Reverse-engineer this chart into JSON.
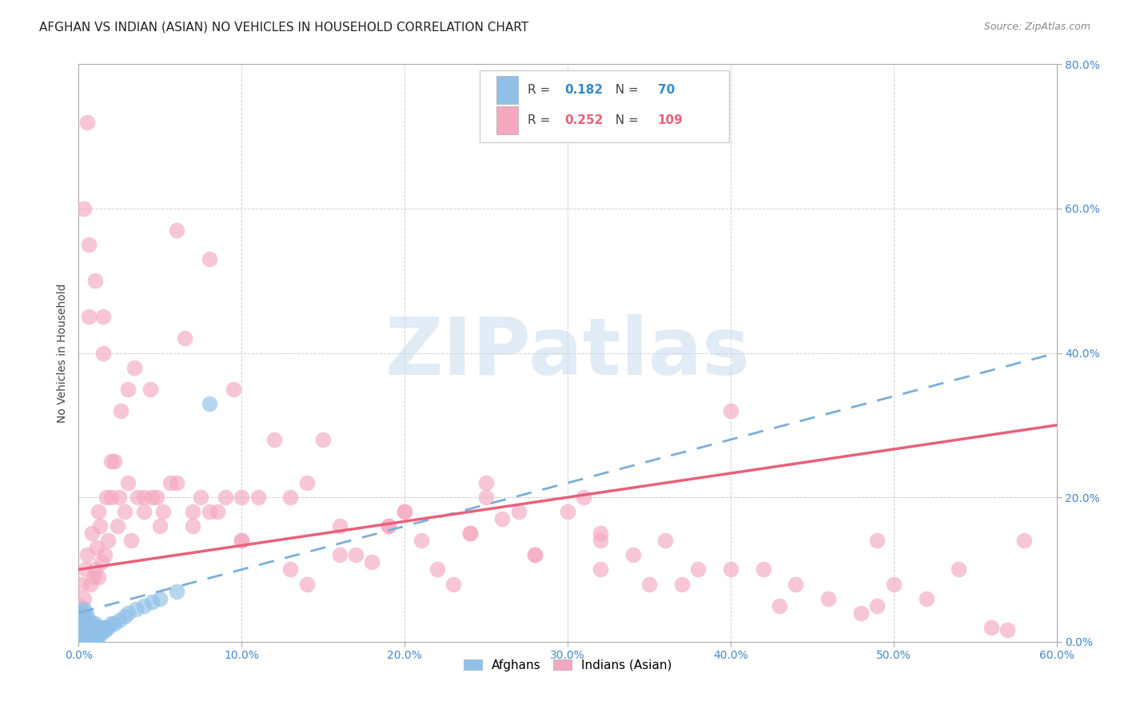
{
  "title": "AFGHAN VS INDIAN (ASIAN) NO VEHICLES IN HOUSEHOLD CORRELATION CHART",
  "source": "Source: ZipAtlas.com",
  "ylabel": "No Vehicles in Household",
  "x_tick_labels": [
    "0.0%",
    "10.0%",
    "20.0%",
    "30.0%",
    "40.0%",
    "50.0%",
    "60.0%"
  ],
  "y_tick_labels": [
    "0.0%",
    "20.0%",
    "40.0%",
    "60.0%",
    "80.0%"
  ],
  "xlim": [
    0.0,
    0.6
  ],
  "ylim": [
    0.0,
    0.8
  ],
  "x_ticks": [
    0.0,
    0.1,
    0.2,
    0.3,
    0.4,
    0.5,
    0.6
  ],
  "y_ticks": [
    0.0,
    0.2,
    0.4,
    0.6,
    0.8
  ],
  "afghan_R": 0.182,
  "afghan_N": 70,
  "indian_R": 0.252,
  "indian_N": 109,
  "afghan_color": "#90C0E8",
  "indian_color": "#F4A8C0",
  "afghan_line_color": "#7AAED8",
  "indian_line_color": "#E8607A",
  "background_color": "#FFFFFF",
  "grid_color": "#CCCCCC",
  "title_fontsize": 11,
  "axis_label_fontsize": 10,
  "tick_fontsize": 10,
  "tick_color": "#4488CC",
  "watermark_color": "#C5D8EC",
  "watermark_fontsize": 72,
  "afghan_line_start_y": 0.04,
  "afghan_line_end_y": 0.4,
  "indian_line_start_y": 0.1,
  "indian_line_end_y": 0.3,
  "afghan_x": [
    0.001,
    0.001,
    0.001,
    0.001,
    0.001,
    0.001,
    0.001,
    0.001,
    0.002,
    0.002,
    0.002,
    0.002,
    0.002,
    0.002,
    0.002,
    0.003,
    0.003,
    0.003,
    0.003,
    0.003,
    0.003,
    0.003,
    0.004,
    0.004,
    0.004,
    0.004,
    0.004,
    0.004,
    0.005,
    0.005,
    0.005,
    0.005,
    0.005,
    0.006,
    0.006,
    0.006,
    0.006,
    0.007,
    0.007,
    0.007,
    0.008,
    0.008,
    0.008,
    0.009,
    0.009,
    0.01,
    0.01,
    0.01,
    0.011,
    0.011,
    0.012,
    0.012,
    0.013,
    0.013,
    0.014,
    0.015,
    0.016,
    0.017,
    0.018,
    0.02,
    0.022,
    0.025,
    0.028,
    0.03,
    0.035,
    0.04,
    0.045,
    0.05,
    0.06,
    0.08
  ],
  "afghan_y": [
    0.005,
    0.01,
    0.015,
    0.02,
    0.025,
    0.03,
    0.035,
    0.04,
    0.005,
    0.01,
    0.015,
    0.02,
    0.025,
    0.03,
    0.04,
    0.005,
    0.01,
    0.015,
    0.02,
    0.025,
    0.03,
    0.045,
    0.005,
    0.01,
    0.015,
    0.02,
    0.03,
    0.04,
    0.005,
    0.01,
    0.015,
    0.02,
    0.035,
    0.005,
    0.01,
    0.015,
    0.025,
    0.005,
    0.015,
    0.025,
    0.005,
    0.015,
    0.025,
    0.01,
    0.02,
    0.005,
    0.015,
    0.025,
    0.01,
    0.02,
    0.01,
    0.02,
    0.01,
    0.02,
    0.015,
    0.02,
    0.015,
    0.02,
    0.02,
    0.025,
    0.025,
    0.03,
    0.035,
    0.04,
    0.045,
    0.05,
    0.055,
    0.06,
    0.07,
    0.33
  ],
  "indian_x": [
    0.001,
    0.002,
    0.003,
    0.004,
    0.005,
    0.006,
    0.007,
    0.008,
    0.009,
    0.01,
    0.011,
    0.012,
    0.013,
    0.014,
    0.015,
    0.016,
    0.017,
    0.018,
    0.02,
    0.022,
    0.024,
    0.026,
    0.028,
    0.03,
    0.032,
    0.034,
    0.036,
    0.04,
    0.044,
    0.048,
    0.052,
    0.056,
    0.06,
    0.065,
    0.07,
    0.075,
    0.08,
    0.085,
    0.09,
    0.095,
    0.1,
    0.11,
    0.12,
    0.13,
    0.14,
    0.15,
    0.16,
    0.17,
    0.18,
    0.19,
    0.2,
    0.21,
    0.22,
    0.23,
    0.24,
    0.25,
    0.26,
    0.27,
    0.28,
    0.3,
    0.31,
    0.32,
    0.34,
    0.35,
    0.36,
    0.38,
    0.4,
    0.42,
    0.44,
    0.46,
    0.48,
    0.5,
    0.52,
    0.54,
    0.56,
    0.58,
    0.003,
    0.006,
    0.01,
    0.015,
    0.02,
    0.03,
    0.04,
    0.05,
    0.06,
    0.08,
    0.1,
    0.13,
    0.16,
    0.2,
    0.24,
    0.28,
    0.32,
    0.37,
    0.43,
    0.49,
    0.005,
    0.012,
    0.025,
    0.045,
    0.07,
    0.1,
    0.14,
    0.19,
    0.25,
    0.32,
    0.4,
    0.49,
    0.57
  ],
  "indian_y": [
    0.05,
    0.08,
    0.06,
    0.1,
    0.12,
    0.45,
    0.08,
    0.15,
    0.09,
    0.1,
    0.13,
    0.09,
    0.16,
    0.11,
    0.45,
    0.12,
    0.2,
    0.14,
    0.2,
    0.25,
    0.16,
    0.32,
    0.18,
    0.35,
    0.14,
    0.38,
    0.2,
    0.2,
    0.35,
    0.2,
    0.18,
    0.22,
    0.57,
    0.42,
    0.18,
    0.2,
    0.53,
    0.18,
    0.2,
    0.35,
    0.2,
    0.2,
    0.28,
    0.2,
    0.22,
    0.28,
    0.16,
    0.12,
    0.11,
    0.16,
    0.18,
    0.14,
    0.1,
    0.08,
    0.15,
    0.22,
    0.17,
    0.18,
    0.12,
    0.18,
    0.2,
    0.14,
    0.12,
    0.08,
    0.14,
    0.1,
    0.32,
    0.1,
    0.08,
    0.06,
    0.04,
    0.08,
    0.06,
    0.1,
    0.02,
    0.14,
    0.6,
    0.55,
    0.5,
    0.4,
    0.25,
    0.22,
    0.18,
    0.16,
    0.22,
    0.18,
    0.14,
    0.1,
    0.12,
    0.18,
    0.15,
    0.12,
    0.1,
    0.08,
    0.05,
    0.14,
    0.72,
    0.18,
    0.2,
    0.2,
    0.16,
    0.14,
    0.08,
    0.16,
    0.2,
    0.15,
    0.1,
    0.05,
    0.016
  ]
}
